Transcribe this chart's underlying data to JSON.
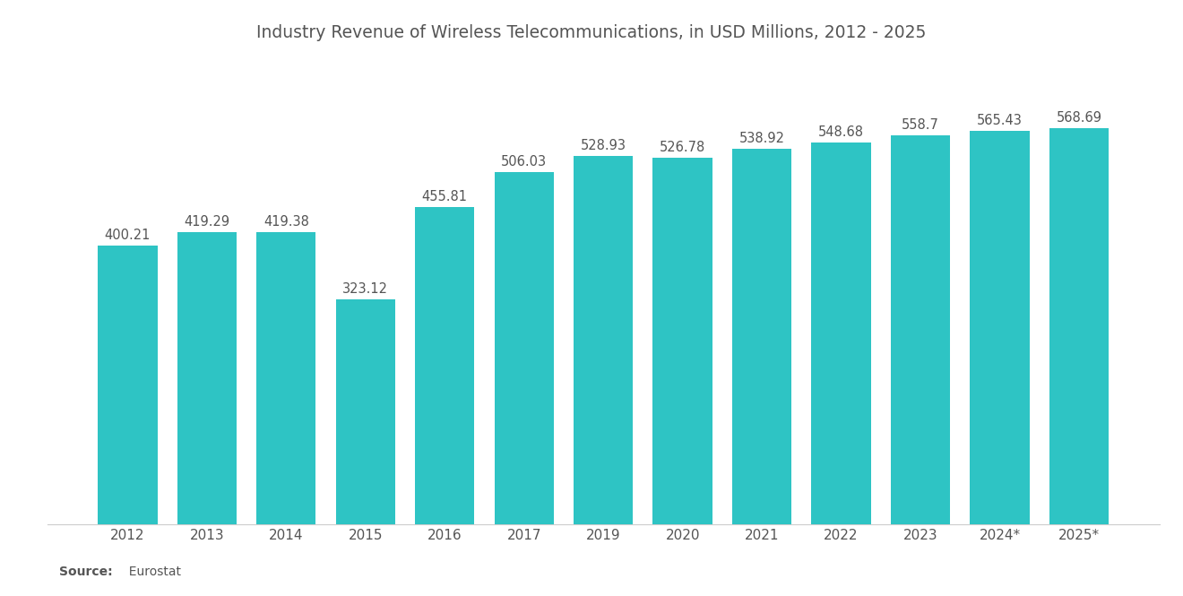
{
  "title": "Industry Revenue of Wireless Telecommunications, in USD Millions, 2012 - 2025",
  "categories": [
    "2012",
    "2013",
    "2014",
    "2015",
    "2016",
    "2017",
    "2019",
    "2020",
    "2021",
    "2022",
    "2023",
    "2024*",
    "2025*"
  ],
  "values": [
    400.21,
    419.29,
    419.38,
    323.12,
    455.81,
    506.03,
    528.93,
    526.78,
    538.92,
    548.68,
    558.7,
    565.43,
    568.69
  ],
  "bar_color": "#2EC4C4",
  "title_fontsize": 13.5,
  "label_fontsize": 10.5,
  "tick_fontsize": 11,
  "source_bold": "Source:",
  "source_normal": "  Eurostat",
  "background_color": "#ffffff",
  "text_color": "#555555",
  "ylim": [
    0,
    650
  ],
  "bar_width": 0.75
}
